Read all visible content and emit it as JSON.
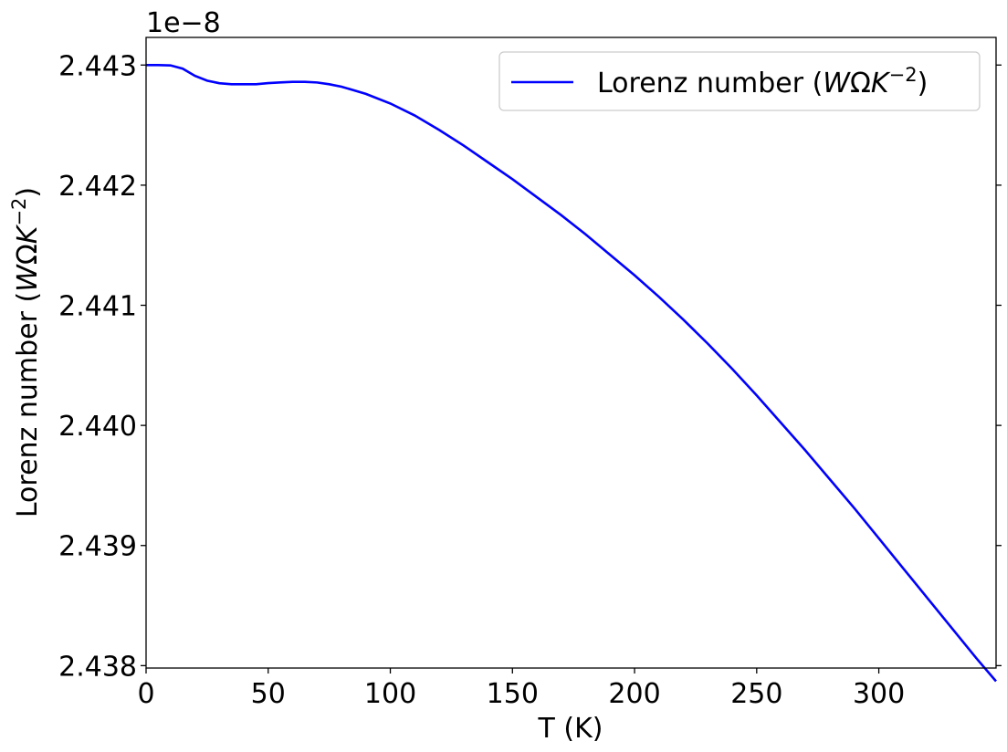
{
  "chart_data": {
    "type": "line",
    "offset_label": "1e−8",
    "xlabel": "T (K)",
    "ylabel": {
      "prefix": "Lorenz number (",
      "unit_w": "W",
      "unit_omega": "Ω",
      "unit_k": "K",
      "exponent": "−2",
      "suffix": ")"
    },
    "xlim": [
      0,
      348
    ],
    "ylim": [
      2.43798,
      2.44323
    ],
    "x_ticks": [
      0,
      50,
      100,
      150,
      200,
      250,
      300
    ],
    "x_tick_labels": [
      "0",
      "50",
      "100",
      "150",
      "200",
      "250",
      "300"
    ],
    "y_ticks": [
      2.438,
      2.439,
      2.44,
      2.441,
      2.442,
      2.443
    ],
    "y_tick_labels": [
      "2.438",
      "2.439",
      "2.440",
      "2.441",
      "2.442",
      "2.443"
    ],
    "grid": false,
    "legend_position": "top-right",
    "series": [
      {
        "name": "Lorenz number (WΩK⁻²)",
        "legend": {
          "prefix": "Lorenz number (",
          "unit_w": "W",
          "unit_omega": "Ω",
          "unit_k": "K",
          "exponent": "−2",
          "suffix": ")"
        },
        "color": "#0000ff",
        "x": [
          0,
          5,
          10,
          15,
          20,
          25,
          30,
          35,
          40,
          45,
          50,
          55,
          60,
          65,
          70,
          75,
          80,
          85,
          90,
          100,
          110,
          120,
          130,
          140,
          150,
          160,
          170,
          180,
          190,
          200,
          210,
          220,
          230,
          240,
          250,
          260,
          270,
          280,
          290,
          300,
          310,
          320,
          330,
          340,
          348
        ],
        "y": [
          2.443,
          2.443,
          2.442997,
          2.44297,
          2.44291,
          2.44287,
          2.442849,
          2.44284,
          2.44284,
          2.44284,
          2.44285,
          2.442855,
          2.44286,
          2.44286,
          2.442855,
          2.44284,
          2.44282,
          2.44279,
          2.44276,
          2.44268,
          2.44258,
          2.44246,
          2.44233,
          2.44219,
          2.44205,
          2.4419,
          2.44175,
          2.44159,
          2.44142,
          2.44125,
          2.44107,
          2.44088,
          2.44068,
          2.44047,
          2.44025,
          2.44002,
          2.43979,
          2.43955,
          2.43931,
          2.43906,
          2.43881,
          2.43856,
          2.43831,
          2.43806,
          2.43787
        ]
      }
    ]
  }
}
